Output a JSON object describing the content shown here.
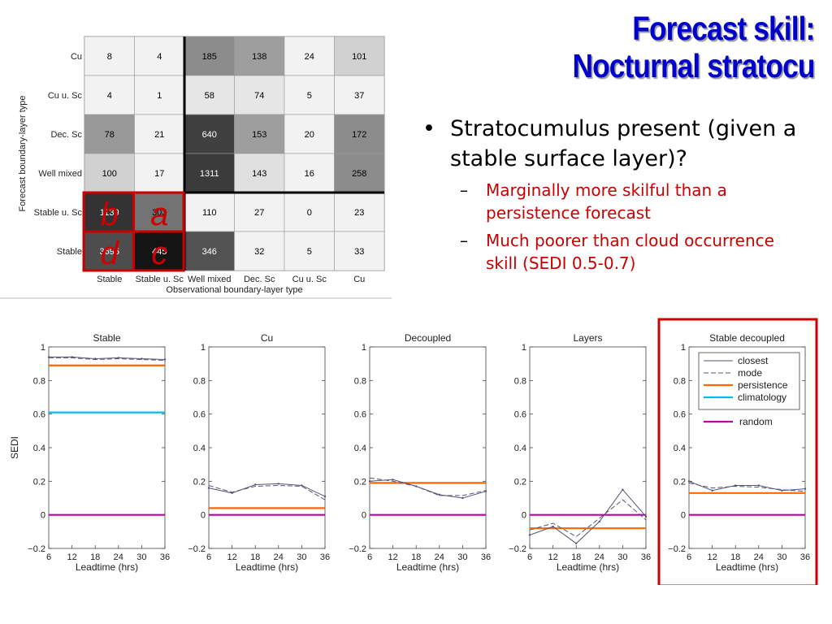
{
  "slide": {
    "title_line1": "Forecast skill:",
    "title_line2": "Nocturnal stratocu",
    "bullet_main": "Stratocumulus present (given a stable surface layer)?",
    "sub_bullets": [
      "Marginally more skilful than a persistence forecast",
      "Much poorer than cloud occurrence skill (SEDI 0.5-0.7)"
    ],
    "dash": "–",
    "accent_color": "#0000cc",
    "highlight_color": "#cc0000"
  },
  "chart_data": [
    {
      "type": "heatmap",
      "xlabel": "Observational boundary-layer type",
      "ylabel": "Forecast boundary-layer type",
      "x_labels": [
        "Stable",
        "Stable u. Sc",
        "Well mixed",
        "Dec. Sc",
        "Cu u. Sc",
        "Cu"
      ],
      "y_labels": [
        "Cu",
        "Cu u. Sc",
        "Dec. Sc",
        "Well mixed",
        "Stable u. Sc",
        "Stable"
      ],
      "values": [
        [
          8,
          4,
          185,
          138,
          24,
          101
        ],
        [
          4,
          1,
          58,
          74,
          5,
          37
        ],
        [
          78,
          21,
          640,
          153,
          20,
          172
        ],
        [
          100,
          17,
          1311,
          143,
          16,
          258
        ],
        [
          1139,
          303,
          110,
          27,
          0,
          23
        ],
        [
          3695,
          445,
          346,
          32,
          5,
          33
        ]
      ],
      "cell_shades": [
        [
          0.95,
          0.95,
          0.55,
          0.62,
          0.95,
          0.82
        ],
        [
          0.95,
          0.95,
          0.9,
          0.9,
          0.95,
          0.95
        ],
        [
          0.6,
          0.95,
          0.25,
          0.62,
          0.95,
          0.55
        ],
        [
          0.82,
          0.95,
          0.23,
          0.88,
          0.95,
          0.55
        ],
        [
          0.2,
          0.45,
          0.95,
          0.95,
          0.95,
          0.95
        ],
        [
          0.3,
          0.08,
          0.32,
          0.95,
          0.95,
          0.95
        ]
      ],
      "highlight_labels": [
        {
          "row": 4,
          "col": 0,
          "text": "b"
        },
        {
          "row": 4,
          "col": 1,
          "text": "a"
        },
        {
          "row": 5,
          "col": 0,
          "text": "d"
        },
        {
          "row": 5,
          "col": 1,
          "text": "c"
        }
      ]
    },
    {
      "type": "line",
      "ylabel": "SEDI",
      "xlabel": "Leadtime (hrs)",
      "x": [
        6,
        12,
        18,
        24,
        30,
        36
      ],
      "xlim": [
        6,
        36
      ],
      "ylim": [
        -0.2,
        1
      ],
      "xticks": [
        "6",
        "12",
        "18",
        "24",
        "30",
        "36"
      ],
      "yticks": [
        "−0.2",
        "0",
        "0.2",
        "0.4",
        "0.6",
        "0.8",
        "1"
      ],
      "ytick_values": [
        -0.2,
        0,
        0.2,
        0.4,
        0.6,
        0.8,
        1
      ],
      "legend": {
        "labels": [
          "closest",
          "mode",
          "persistence",
          "climatology",
          "random"
        ],
        "colors": [
          "#555577",
          "#555577",
          "#ff6600",
          "#00bbee",
          "#bb00aa"
        ]
      },
      "panels": [
        {
          "title": "Stable",
          "closest": [
            0.94,
            0.94,
            0.93,
            0.935,
            0.93,
            0.925
          ],
          "mode": [
            0.935,
            0.935,
            0.925,
            0.93,
            0.925,
            0.92
          ],
          "persistence": 0.89,
          "climatology": 0.61,
          "random": 0.0
        },
        {
          "title": "Cu",
          "closest": [
            0.16,
            0.13,
            0.18,
            0.185,
            0.175,
            0.11
          ],
          "mode": [
            0.175,
            0.135,
            0.17,
            0.175,
            0.17,
            0.09
          ],
          "persistence": 0.04,
          "random": 0.0
        },
        {
          "title": "Decoupled",
          "closest": [
            0.2,
            0.21,
            0.17,
            0.12,
            0.1,
            0.14
          ],
          "mode": [
            0.22,
            0.2,
            0.17,
            0.115,
            0.115,
            0.145
          ],
          "persistence": 0.19,
          "random": 0.0
        },
        {
          "title": "Layers",
          "closest": [
            -0.12,
            -0.07,
            -0.17,
            -0.04,
            0.15,
            -0.01
          ],
          "mode": [
            -0.09,
            -0.05,
            -0.13,
            -0.02,
            0.09,
            -0.03
          ],
          "persistence": -0.08,
          "random": 0.0
        },
        {
          "title": "Stable decoupled",
          "closest": [
            0.2,
            0.145,
            0.175,
            0.175,
            0.145,
            0.155
          ],
          "mode": [
            0.19,
            0.16,
            0.17,
            0.165,
            0.15,
            0.14
          ],
          "persistence": 0.13,
          "random": 0.0
        }
      ]
    }
  ]
}
